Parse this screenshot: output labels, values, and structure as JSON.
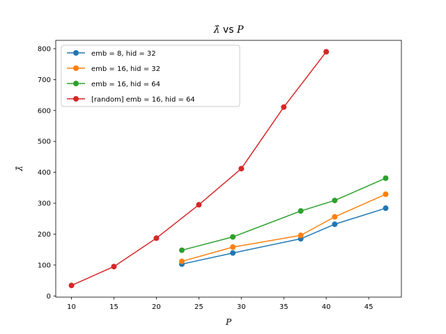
{
  "chart_data": {
    "type": "line",
    "title": {
      "symbol": "λ̂",
      "rest": " vs ",
      "var": "P"
    },
    "xlabel": "P",
    "ylabel": "λ̂",
    "xlim": [
      8.15,
      48.85
    ],
    "ylim": [
      -3.8,
      827
    ],
    "xticks": [
      10,
      15,
      20,
      25,
      30,
      35,
      40,
      45
    ],
    "yticks": [
      0,
      100,
      200,
      300,
      400,
      500,
      600,
      700,
      800
    ],
    "grid": false,
    "legend_position": "top-left",
    "series": [
      {
        "name": "emb = 8, hid = 32",
        "color": "#1f77b4",
        "x": [
          23,
          29,
          37,
          41,
          47
        ],
        "y": [
          103,
          139,
          185,
          232,
          284
        ]
      },
      {
        "name": "emb = 16, hid = 32",
        "color": "#ff7f0e",
        "x": [
          23,
          29,
          37,
          41,
          47
        ],
        "y": [
          112,
          158,
          196,
          256,
          329
        ]
      },
      {
        "name": "emb = 16, hid = 64",
        "color": "#2ca02c",
        "x": [
          23,
          29,
          37,
          41,
          47
        ],
        "y": [
          148,
          191,
          275,
          309,
          381
        ]
      },
      {
        "name": "[random] emb = 16, hid = 64",
        "color": "#d62728",
        "x": [
          10,
          15,
          20,
          25,
          30,
          35,
          40
        ],
        "y": [
          34,
          95,
          187,
          295,
          412,
          611,
          790
        ]
      }
    ]
  }
}
